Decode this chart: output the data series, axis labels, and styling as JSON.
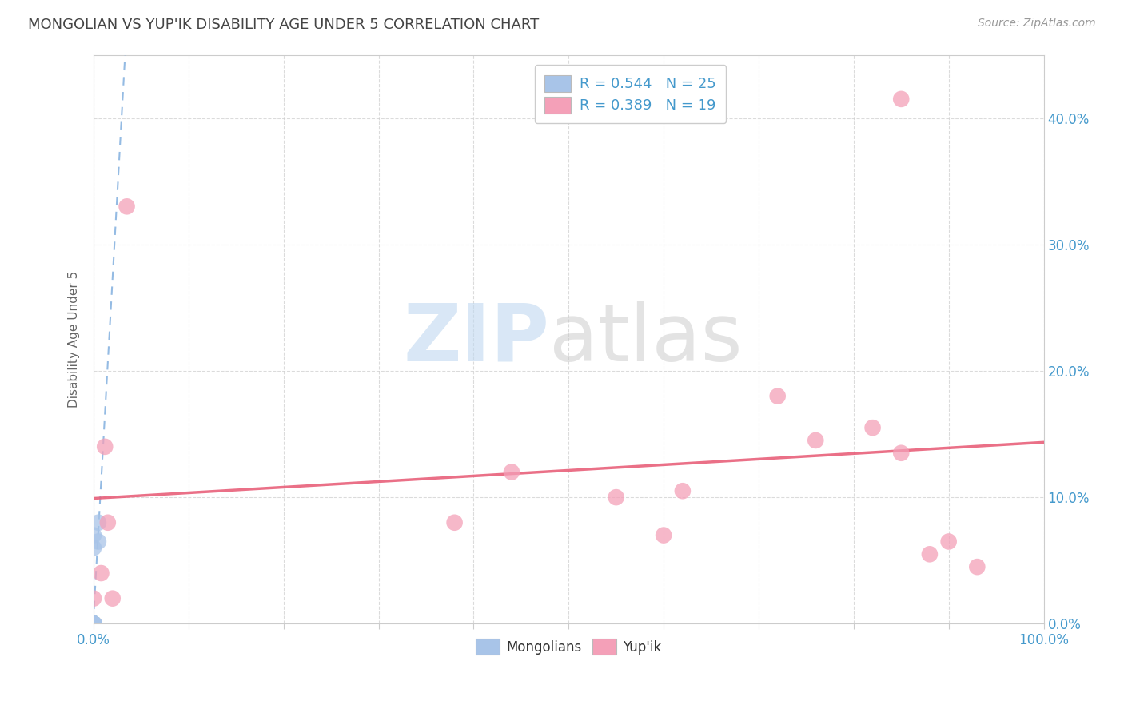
{
  "title": "MONGOLIAN VS YUP'IK DISABILITY AGE UNDER 5 CORRELATION CHART",
  "source_text": "Source: ZipAtlas.com",
  "ylabel": "Disability Age Under 5",
  "mongolian_R": 0.544,
  "mongolian_N": 25,
  "yupik_R": 0.389,
  "yupik_N": 19,
  "mongolian_color": "#a8c4e8",
  "mongolian_line_color": "#7aaadd",
  "yupik_color": "#f4a0b8",
  "yupik_line_color": "#e8607a",
  "axis_color": "#4499cc",
  "title_color": "#444444",
  "source_color": "#999999",
  "ylabel_color": "#666666",
  "mongolian_x": [
    0.0,
    0.0,
    0.0,
    0.0,
    0.0,
    0.0,
    0.0,
    0.0,
    0.0,
    0.0,
    0.0,
    0.0,
    0.0,
    0.0,
    0.0,
    0.0,
    0.0,
    0.0,
    0.0,
    0.0,
    0.0,
    0.0,
    0.0,
    0.005,
    0.005
  ],
  "mongolian_y": [
    0.0,
    0.0,
    0.0,
    0.0,
    0.0,
    0.0,
    0.0,
    0.0,
    0.0,
    0.0,
    0.0,
    0.0,
    0.0,
    0.0,
    0.0,
    0.0,
    0.0,
    0.0,
    0.0,
    0.0,
    0.0,
    0.06,
    0.07,
    0.065,
    0.08
  ],
  "yupik_x": [
    0.0,
    0.008,
    0.012,
    0.015,
    0.02,
    0.035,
    0.38,
    0.44,
    0.55,
    0.6,
    0.62,
    0.72,
    0.76,
    0.82,
    0.85,
    0.88,
    0.9,
    0.93,
    0.85
  ],
  "yupik_y": [
    0.02,
    0.04,
    0.14,
    0.08,
    0.02,
    0.33,
    0.08,
    0.12,
    0.1,
    0.07,
    0.105,
    0.18,
    0.145,
    0.155,
    0.135,
    0.055,
    0.065,
    0.045,
    0.415
  ],
  "xlim": [
    0.0,
    1.0
  ],
  "ylim": [
    0.0,
    0.45
  ],
  "ytick_vals": [
    0.0,
    0.1,
    0.2,
    0.3,
    0.4
  ],
  "ytick_labels": [
    "0.0%",
    "10.0%",
    "20.0%",
    "30.0%",
    "40.0%"
  ],
  "xtick_vals": [
    0.0,
    0.1,
    0.2,
    0.3,
    0.4,
    0.5,
    0.6,
    0.7,
    0.8,
    0.9,
    1.0
  ],
  "grid_color": "#cccccc",
  "spine_color": "#cccccc",
  "background_color": "#ffffff",
  "watermark_ZIP_color": "#c0d8f0",
  "watermark_atlas_color": "#c8c8c8"
}
